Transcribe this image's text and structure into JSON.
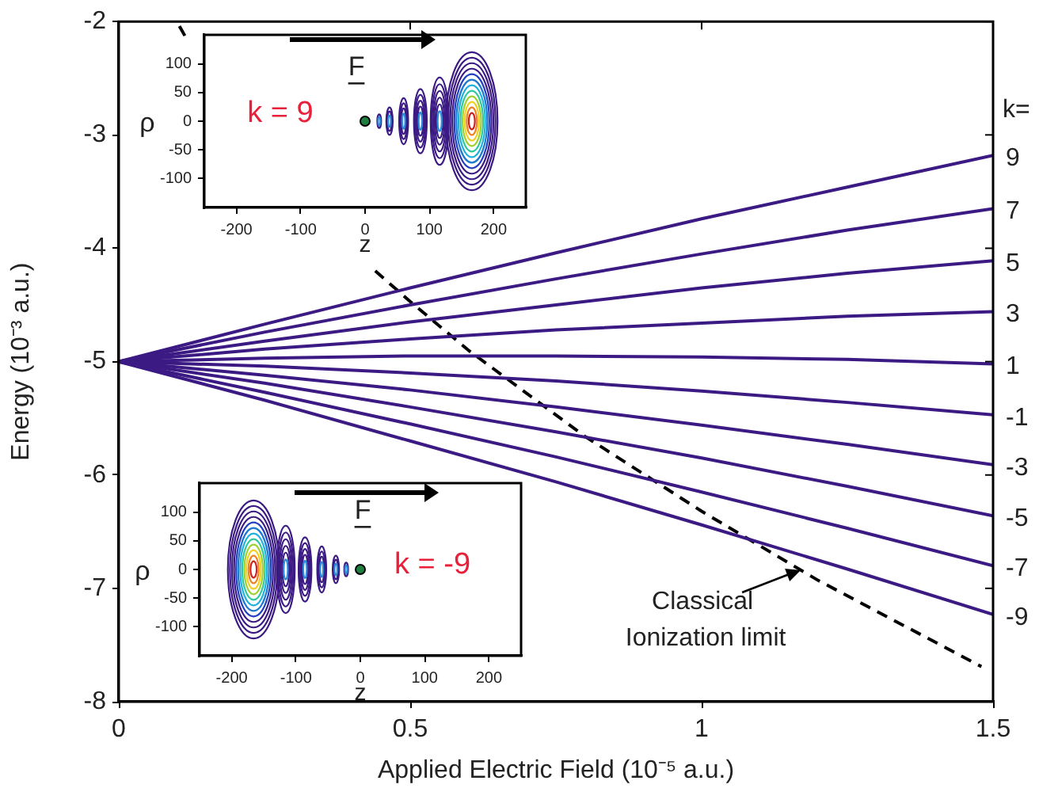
{
  "chart_data": [
    {
      "type": "line",
      "xlabel": "Applied Electric Field (10⁻⁵ a.u.)",
      "ylabel": "Energy (10⁻³ a.u.)",
      "legend_title": "k=",
      "xlim": [
        0,
        1.5
      ],
      "ylim": [
        -8,
        -2
      ],
      "xticks": [
        0,
        0.5,
        1,
        1.5
      ],
      "yticks": [
        -8,
        -7,
        -6,
        -5,
        -4,
        -3,
        -2
      ],
      "grid": false,
      "legend": false,
      "marker": "none",
      "line_style": "solid",
      "x": [
        0,
        0.25,
        0.5,
        0.75,
        1,
        1.25,
        1.5
      ],
      "series": [
        {
          "name": "9",
          "color": "#3c1a84",
          "values": [
            -5,
            -4.67,
            -4.35,
            -4.04,
            -3.74,
            -3.46,
            -3.18
          ]
        },
        {
          "name": "7",
          "color": "#3c1a84",
          "values": [
            -5,
            -4.74,
            -4.5,
            -4.27,
            -4.05,
            -3.84,
            -3.65
          ]
        },
        {
          "name": "5",
          "color": "#3c1a84",
          "values": [
            -5,
            -4.82,
            -4.65,
            -4.5,
            -4.35,
            -4.22,
            -4.11
          ]
        },
        {
          "name": "3",
          "color": "#3c1a84",
          "values": [
            -5,
            -4.89,
            -4.8,
            -4.72,
            -4.66,
            -4.6,
            -4.56
          ]
        },
        {
          "name": "1",
          "color": "#3c1a84",
          "values": [
            -5,
            -4.97,
            -4.95,
            -4.95,
            -4.96,
            -4.98,
            -5.02
          ]
        },
        {
          "name": "-1",
          "color": "#3c1a84",
          "values": [
            -5,
            -5.04,
            -5.1,
            -5.17,
            -5.26,
            -5.36,
            -5.47
          ]
        },
        {
          "name": "-3",
          "color": "#3c1a84",
          "values": [
            -5,
            -5.12,
            -5.25,
            -5.4,
            -5.56,
            -5.73,
            -5.91
          ]
        },
        {
          "name": "-5",
          "color": "#3c1a84",
          "values": [
            -5,
            -5.19,
            -5.4,
            -5.62,
            -5.85,
            -6.1,
            -6.36
          ]
        },
        {
          "name": "-7",
          "color": "#3c1a84",
          "values": [
            -5,
            -5.27,
            -5.55,
            -5.84,
            -6.15,
            -6.47,
            -6.8
          ]
        },
        {
          "name": "-9",
          "color": "#3c1a84",
          "values": [
            -5,
            -5.34,
            -5.7,
            -6.06,
            -6.44,
            -6.83,
            -7.23
          ]
        },
        {
          "color": "#000000",
          "line_style": "dashed",
          "x": [
            0.104,
            0.115,
            0.25,
            0.44,
            0.5,
            0.6,
            0.8,
            1,
            1.2,
            1.48
          ],
          "values": [
            -2.04,
            -2.14,
            null,
            -4.2,
            -4.47,
            -4.9,
            -5.66,
            -6.32,
            -6.93,
            -7.69
          ]
        }
      ],
      "annotations": [
        {
          "text": "Classical Ionization limit",
          "x": 1.17,
          "y": -6.84
        }
      ]
    },
    {
      "type": "scatter",
      "xlabel": "z",
      "ylabel": "ρ",
      "xlim": [
        -250,
        250
      ],
      "ylim": [
        -150,
        150
      ],
      "xticks": [
        -200,
        -100,
        0,
        100,
        200
      ],
      "yticks": [
        -100,
        -50,
        0,
        50,
        100
      ],
      "marker": "circle",
      "x": [
        0
      ],
      "series": [
        {
          "color": "#208040",
          "values": [
            0
          ]
        }
      ],
      "annotations": [
        "F",
        "k = 9"
      ]
    },
    {
      "type": "scatter",
      "xlabel": "z",
      "ylabel": "ρ",
      "xlim": [
        -250,
        250
      ],
      "ylim": [
        -150,
        150
      ],
      "xticks": [
        -200,
        -100,
        0,
        100,
        200
      ],
      "yticks": [
        -100,
        -50,
        0,
        50,
        100
      ],
      "marker": "circle",
      "x": [
        0
      ],
      "series": [
        {
          "color": "#208040",
          "values": [
            0
          ]
        }
      ],
      "annotations": [
        "F",
        "k = -9"
      ]
    }
  ]
}
